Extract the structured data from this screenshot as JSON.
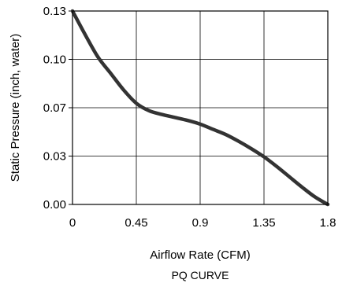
{
  "chart_data": {
    "type": "line",
    "title": "PQ CURVE",
    "xlabel": "Airflow Rate (CFM)",
    "ylabel": "Static Pressure (inch, water)",
    "xlim": [
      0,
      1.8
    ],
    "ylim": [
      0,
      0.13
    ],
    "x_ticks": [
      "0",
      "0.45",
      "0.9",
      "1.35",
      "1.8"
    ],
    "y_ticks": [
      "0.00",
      "0.03",
      "0.07",
      "0.10",
      "0.13"
    ],
    "grid": true,
    "legend": "none",
    "series": [
      {
        "color": "#333333",
        "points": [
          [
            0,
            0.13
          ],
          [
            0.09,
            0.114
          ],
          [
            0.18,
            0.099
          ],
          [
            0.27,
            0.088
          ],
          [
            0.36,
            0.077
          ],
          [
            0.45,
            0.068
          ],
          [
            0.54,
            0.063
          ],
          [
            0.63,
            0.0605
          ],
          [
            0.72,
            0.0585
          ],
          [
            0.81,
            0.0565
          ],
          [
            0.9,
            0.054
          ],
          [
            0.99,
            0.0505
          ],
          [
            1.08,
            0.047
          ],
          [
            1.17,
            0.0425
          ],
          [
            1.26,
            0.0375
          ],
          [
            1.35,
            0.032
          ],
          [
            1.44,
            0.0255
          ],
          [
            1.53,
            0.0185
          ],
          [
            1.62,
            0.0115
          ],
          [
            1.71,
            0.005
          ],
          [
            1.8,
            0.0
          ]
        ]
      }
    ]
  }
}
